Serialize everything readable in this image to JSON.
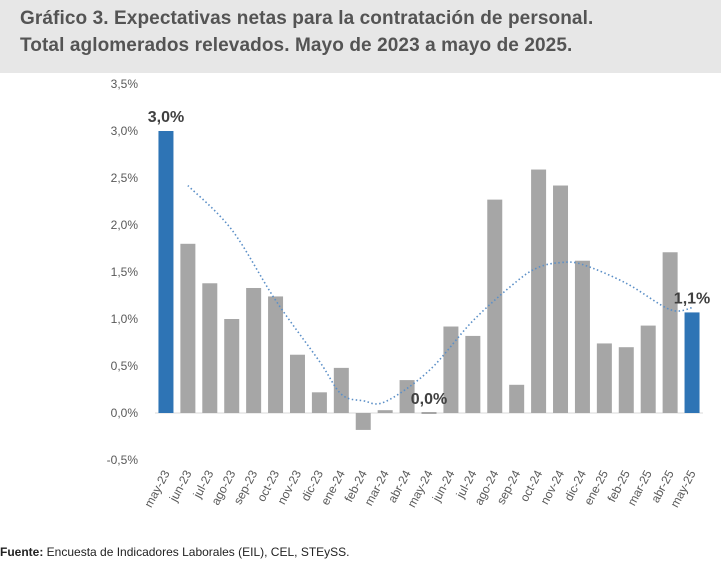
{
  "title": {
    "line1": "Gráfico 3. Expectativas netas para la contratación de personal.",
    "line2": "Total aglomerados relevados. Mayo de 2023 a mayo de 2025."
  },
  "footer": {
    "label": "Fuente:",
    "text": " Encuesta de Indicadores Laborales (EIL), CEL, STEySS."
  },
  "colors": {
    "highlight": "#2e74b5",
    "bar": "#a6a6a6",
    "trend": "#5b8fc7"
  },
  "chart_data": {
    "type": "bar",
    "categories": [
      "may-23",
      "jun-23",
      "jul-23",
      "ago-23",
      "sep-23",
      "oct-23",
      "nov-23",
      "dic-23",
      "ene-24",
      "feb-24",
      "mar-24",
      "abr-24",
      "may-24",
      "jun-24",
      "jul-24",
      "ago-24",
      "sep-24",
      "oct-24",
      "nov-24",
      "dic-24",
      "ene-25",
      "feb-25",
      "mar-25",
      "abr-25",
      "may-25"
    ],
    "values": [
      3.0,
      1.8,
      1.38,
      1.0,
      1.33,
      1.24,
      0.62,
      0.22,
      0.48,
      -0.18,
      0.03,
      0.35,
      0.0,
      0.92,
      0.82,
      2.27,
      0.3,
      2.59,
      2.42,
      1.62,
      0.74,
      0.7,
      0.93,
      1.71,
      1.07
    ],
    "highlight": [
      "may-23",
      "may-25"
    ],
    "yticks": [
      "3,5%",
      "3,0%",
      "2,5%",
      "2,0%",
      "1,5%",
      "1,0%",
      "0,5%",
      "0,0%",
      "-0,5%"
    ],
    "ylim": [
      -0.5,
      3.5
    ],
    "annotations": [
      {
        "category": "may-23",
        "text": "3,0%"
      },
      {
        "category": "may-24",
        "text": "0,0%"
      },
      {
        "category": "may-25",
        "text": "1,1%"
      }
    ],
    "trendline": "polynomial",
    "xlabel": "",
    "ylabel": ""
  }
}
